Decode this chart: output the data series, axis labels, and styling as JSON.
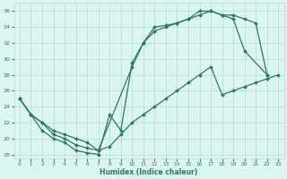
{
  "line1_x": [
    0,
    1,
    2,
    3,
    4,
    5,
    6,
    7,
    8,
    9,
    10,
    11,
    12,
    13,
    14,
    15,
    16,
    17,
    18,
    19,
    20,
    22
  ],
  "line1_y": [
    25,
    23,
    21,
    20,
    19.5,
    18.5,
    18.2,
    18,
    23,
    21,
    29.5,
    32,
    34,
    34.2,
    34.5,
    35,
    36,
    36,
    35.5,
    35,
    31,
    28
  ],
  "line2_x": [
    0,
    1,
    2,
    3,
    4,
    5,
    6,
    7,
    10,
    11,
    12,
    13,
    14,
    15,
    16,
    17,
    18,
    19,
    20,
    21,
    22
  ],
  "line2_y": [
    25,
    23,
    22,
    20.5,
    20,
    19.2,
    18.8,
    18.5,
    29,
    32,
    33.5,
    34,
    34.5,
    35,
    35.5,
    36,
    35.5,
    35.5,
    35,
    34.5,
    28
  ],
  "line3_x": [
    0,
    1,
    2,
    3,
    4,
    5,
    6,
    7,
    8,
    9,
    10,
    11,
    12,
    13,
    14,
    15,
    16,
    17,
    18,
    19,
    20,
    21,
    22,
    23
  ],
  "line3_y": [
    25,
    23,
    22,
    21,
    20.5,
    20,
    19.5,
    18.5,
    19,
    20.5,
    22,
    23,
    24,
    25,
    26,
    27,
    28,
    29,
    25.5,
    26,
    26.5,
    27,
    27.5,
    28
  ],
  "line_color": "#2a7a65",
  "bg_color": "#ddf5f0",
  "grid_color": "#b0ddd5",
  "xlabel": "Humidex (Indice chaleur)",
  "xlim": [
    -0.5,
    23.5
  ],
  "ylim": [
    17.5,
    37
  ],
  "yticks": [
    18,
    20,
    22,
    24,
    26,
    28,
    30,
    32,
    34,
    36
  ],
  "xticks": [
    0,
    1,
    2,
    3,
    4,
    5,
    6,
    7,
    8,
    9,
    10,
    11,
    12,
    13,
    14,
    15,
    16,
    17,
    18,
    19,
    20,
    21,
    22,
    23
  ]
}
